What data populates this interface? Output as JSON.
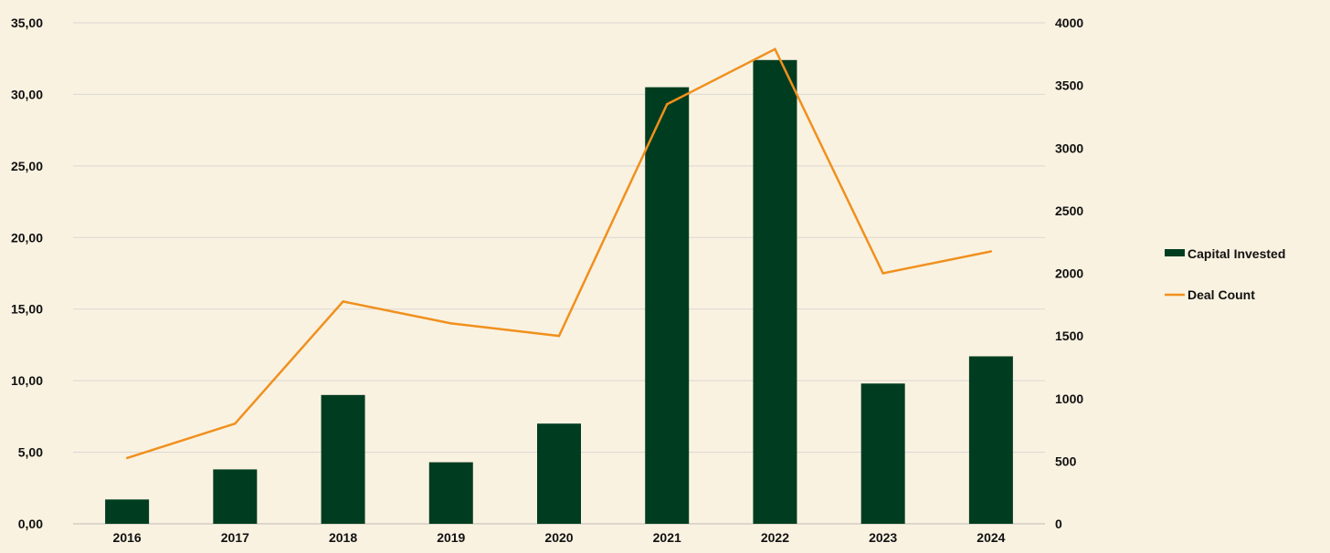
{
  "chart_data": {
    "type": "bar",
    "categories": [
      "2016",
      "2017",
      "2018",
      "2019",
      "2020",
      "2021",
      "2022",
      "2023",
      "2024"
    ],
    "series": [
      {
        "name": "Capital Invested",
        "type": "bar",
        "axis": "left",
        "color": "#003d20",
        "values": [
          1.7,
          3.8,
          9.0,
          4.3,
          7.0,
          30.5,
          32.4,
          9.8,
          11.7
        ]
      },
      {
        "name": "Deal Count",
        "type": "line",
        "axis": "right",
        "color": "#f0901e",
        "values": [
          525,
          800,
          1775,
          1600,
          1500,
          3350,
          3790,
          2000,
          2175
        ]
      }
    ],
    "y_left": {
      "range": [
        0,
        35
      ],
      "ticks": [
        "0,00",
        "5,00",
        "10,00",
        "15,00",
        "20,00",
        "25,00",
        "30,00",
        "35,00"
      ]
    },
    "y_right": {
      "range": [
        0,
        4000
      ],
      "ticks": [
        "0",
        "500",
        "1000",
        "1500",
        "2000",
        "2500",
        "3000",
        "3500",
        "4000"
      ]
    },
    "grid": true,
    "legend": "right",
    "colors": {
      "background": "#faf2e1",
      "gridline": "#d9d6d3"
    }
  }
}
